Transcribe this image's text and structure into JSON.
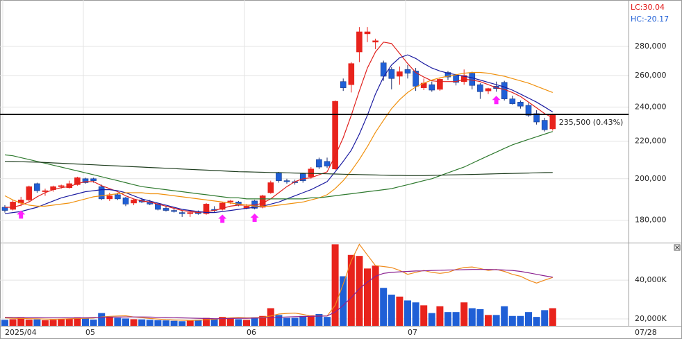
{
  "chart_data": {
    "type": "candlestick",
    "log_scale": true,
    "grid": true,
    "up_color": "#e8231c",
    "down_color": "#1f5fd6",
    "lc_label": "LC:30.04",
    "hc_label": "HC:-20.17",
    "cursor_date": "07/28",
    "current_price": 235500,
    "current_label": "235,500 (0.43%)",
    "signal_color": "#ff20ff",
    "signals": [
      2,
      27,
      31,
      61
    ],
    "categories": [
      "2025/04",
      null,
      null,
      null,
      null,
      null,
      null,
      null,
      null,
      null,
      "05",
      null,
      null,
      null,
      null,
      null,
      null,
      null,
      null,
      null,
      null,
      null,
      null,
      null,
      null,
      null,
      null,
      null,
      null,
      null,
      "06",
      null,
      null,
      null,
      null,
      null,
      null,
      null,
      null,
      null,
      null,
      null,
      null,
      null,
      null,
      null,
      null,
      null,
      null,
      null,
      "07",
      null,
      null,
      null,
      null,
      null,
      null,
      null,
      null,
      null,
      null,
      null,
      null,
      null,
      null,
      null,
      null,
      null,
      null
    ],
    "open": [
      186000,
      185000,
      188000,
      189500,
      197500,
      193500,
      194500,
      196000,
      195500,
      197000,
      200000,
      200000,
      196000,
      190000,
      192000,
      190500,
      188000,
      189500,
      188500,
      187500,
      185500,
      184500,
      183500,
      183000,
      183500,
      183000,
      185000,
      185000,
      188500,
      188500,
      185500,
      189000,
      186000,
      193000,
      203000,
      199000,
      198500,
      202500,
      201000,
      210000,
      209000,
      205000,
      256000,
      254000,
      276000,
      289000,
      283000,
      268500,
      264000,
      259500,
      264000,
      263000,
      252000,
      254000,
      251000,
      262000,
      260000,
      256000,
      261500,
      254000,
      250000,
      253000,
      255500,
      245000,
      243000,
      241000,
      236000,
      232000,
      227000
    ],
    "high": [
      187000,
      189500,
      191000,
      196500,
      198000,
      195000,
      196500,
      197000,
      199000,
      201000,
      200500,
      200500,
      197000,
      193000,
      193000,
      191000,
      190000,
      190500,
      189500,
      188000,
      186500,
      185500,
      184500,
      184000,
      184500,
      188000,
      186500,
      188500,
      189500,
      189000,
      187500,
      189500,
      192000,
      199000,
      203500,
      200000,
      199500,
      203000,
      206000,
      211000,
      211000,
      244000,
      258000,
      269000,
      294000,
      294000,
      285500,
      270000,
      265500,
      266000,
      267000,
      265000,
      258000,
      256000,
      258500,
      263000,
      261000,
      264000,
      262500,
      255000,
      252000,
      256000,
      256500,
      247000,
      244000,
      242500,
      238000,
      233500,
      236000
    ],
    "low": [
      183500,
      184500,
      186500,
      188500,
      193000,
      191500,
      193500,
      195000,
      195000,
      196500,
      197500,
      198000,
      189500,
      189000,
      189500,
      186500,
      187000,
      188000,
      187000,
      184500,
      184000,
      183500,
      181500,
      181500,
      182500,
      182500,
      183500,
      184500,
      187500,
      186500,
      185000,
      185000,
      185500,
      192500,
      198000,
      197500,
      197000,
      198000,
      200000,
      205000,
      205500,
      204500,
      250000,
      249000,
      269000,
      283000,
      278000,
      256500,
      251000,
      254000,
      258000,
      250000,
      250500,
      249500,
      250000,
      257000,
      253500,
      254000,
      251000,
      245000,
      248000,
      249500,
      244000,
      241500,
      239000,
      234000,
      229500,
      225500,
      226000
    ],
    "close": [
      184500,
      188500,
      189500,
      196000,
      194000,
      194000,
      196000,
      196500,
      197500,
      200500,
      198000,
      199000,
      190000,
      191500,
      190000,
      187500,
      189500,
      188500,
      187500,
      185000,
      184500,
      184000,
      183000,
      183500,
      183000,
      187500,
      184500,
      188000,
      189000,
      187000,
      186500,
      185500,
      191500,
      198000,
      199000,
      198500,
      198000,
      199000,
      205000,
      206000,
      206500,
      243500,
      252000,
      268000,
      290500,
      290500,
      284000,
      259500,
      258000,
      262500,
      261500,
      253000,
      255000,
      250500,
      257500,
      259000,
      255500,
      260000,
      253500,
      249500,
      251500,
      251500,
      245000,
      242000,
      240500,
      235000,
      231000,
      226500,
      235500
    ],
    "ylim": [
      170000,
      315000
    ],
    "yticks": [
      {
        "value": 180000,
        "label": "180,000"
      },
      {
        "value": 200000,
        "label": "200,000"
      },
      {
        "value": 220000,
        "label": "220,000"
      },
      {
        "value": 240000,
        "label": "240,000"
      },
      {
        "value": 260000,
        "label": "260,000"
      },
      {
        "value": 280000,
        "label": "280,000"
      }
    ],
    "series": [
      {
        "name": "MA5",
        "color": "#e0201c",
        "values": [
          186000,
          186000,
          187000,
          188500,
          191000,
          193000,
          194500,
          195500,
          196000,
          197500,
          198500,
          198500,
          196500,
          195000,
          193500,
          191500,
          190000,
          189000,
          188500,
          187500,
          186500,
          185500,
          184500,
          184000,
          183500,
          184000,
          184500,
          185500,
          186500,
          187000,
          187000,
          187000,
          188000,
          190000,
          193000,
          196000,
          198500,
          200000,
          200500,
          202000,
          203500,
          212000,
          222000,
          235000,
          250000,
          265000,
          276000,
          283000,
          282000,
          275000,
          268000,
          262000,
          259000,
          256500,
          256000,
          256000,
          256000,
          257500,
          257000,
          256000,
          254000,
          252000,
          251000,
          249000,
          246500,
          243000,
          239500,
          236000,
          233500
        ]
      },
      {
        "name": "MA10",
        "color": "#1a1aa0",
        "values": [
          183000,
          183500,
          184000,
          185000,
          186000,
          187500,
          189000,
          190500,
          191500,
          192500,
          193500,
          194000,
          194500,
          194500,
          194000,
          193000,
          191500,
          190000,
          189000,
          188000,
          187000,
          186000,
          185000,
          184500,
          184000,
          183500,
          183500,
          184000,
          184500,
          185000,
          185500,
          186000,
          186500,
          187500,
          188500,
          190000,
          191500,
          193000,
          194500,
          196500,
          198500,
          203500,
          209000,
          215000,
          224000,
          235000,
          248000,
          259000,
          267000,
          272000,
          274000,
          271500,
          268000,
          265000,
          263000,
          261500,
          260500,
          259500,
          258500,
          257000,
          255500,
          254000,
          252500,
          250500,
          248000,
          245500,
          243000,
          240000,
          237000
        ]
      },
      {
        "name": "MA20",
        "color": "#f0900c",
        "values": [
          191500,
          189500,
          188000,
          187000,
          186500,
          186500,
          187000,
          187500,
          188000,
          189000,
          190000,
          191000,
          191500,
          192000,
          192500,
          193000,
          193000,
          193000,
          192500,
          192500,
          192000,
          191500,
          191000,
          190500,
          190000,
          189500,
          189000,
          188500,
          188000,
          187500,
          187000,
          186500,
          186500,
          186500,
          187000,
          187500,
          188000,
          188500,
          189500,
          190500,
          192000,
          195000,
          199000,
          204000,
          210000,
          217000,
          225000,
          232000,
          239000,
          244500,
          249000,
          252500,
          255000,
          257000,
          258500,
          259500,
          260500,
          261500,
          262000,
          262000,
          261500,
          260500,
          259500,
          258000,
          256500,
          255000,
          253000,
          251000,
          249000
        ]
      },
      {
        "name": "MA60",
        "color": "#2f7a2f",
        "values": [
          212500,
          212000,
          211000,
          210000,
          209000,
          208000,
          207000,
          206000,
          205000,
          204000,
          203000,
          202000,
          201000,
          200000,
          199000,
          198000,
          197000,
          196000,
          195500,
          195000,
          194500,
          194000,
          193500,
          193000,
          192500,
          192000,
          191500,
          191000,
          190500,
          190500,
          190000,
          190000,
          190000,
          190000,
          190000,
          190000,
          190000,
          190000,
          190500,
          190500,
          191000,
          191500,
          192000,
          192500,
          193000,
          193500,
          194000,
          194500,
          195000,
          196000,
          197000,
          198000,
          199000,
          200000,
          201500,
          203000,
          204500,
          206000,
          208000,
          210000,
          212000,
          214000,
          216000,
          218000,
          219500,
          221000,
          222500,
          224000,
          225500
        ]
      },
      {
        "name": "MA120",
        "color": "#1e3d1e",
        "values": [
          209000,
          208900,
          208800,
          208700,
          208600,
          208400,
          208200,
          208000,
          207800,
          207600,
          207400,
          207200,
          207000,
          206800,
          206600,
          206400,
          206200,
          206000,
          205800,
          205600,
          205400,
          205200,
          205000,
          204800,
          204600,
          204400,
          204200,
          204000,
          203800,
          203600,
          203500,
          203400,
          203300,
          203200,
          203100,
          203000,
          202900,
          202800,
          202700,
          202600,
          202500,
          202400,
          202300,
          202200,
          202100,
          202000,
          201900,
          201800,
          201700,
          201700,
          201600,
          201600,
          201600,
          201700,
          201800,
          201900,
          202000,
          202100,
          202200,
          202300,
          202400,
          202500,
          202600,
          202700,
          202800,
          202900,
          203000,
          203100,
          203200
        ]
      }
    ],
    "volume": {
      "ylim": [
        16400,
        59000
      ],
      "yticks": [
        {
          "value": 20000,
          "label": "20,000K"
        },
        {
          "value": 40000,
          "label": "40,000K"
        }
      ],
      "values": [
        19500,
        19800,
        20500,
        19600,
        19700,
        19300,
        19500,
        19800,
        20000,
        20800,
        20200,
        19600,
        23000,
        21000,
        20500,
        20200,
        19800,
        19700,
        19500,
        19300,
        19200,
        19000,
        18800,
        19100,
        19500,
        20500,
        20000,
        21000,
        20500,
        19800,
        19500,
        20800,
        21500,
        25500,
        22000,
        20500,
        20500,
        21500,
        21800,
        22500,
        21000,
        58500,
        42000,
        53000,
        52500,
        46000,
        47500,
        36000,
        32500,
        31500,
        29500,
        28500,
        27000,
        23000,
        26500,
        23500,
        23500,
        28500,
        25500,
        25000,
        22000,
        22000,
        26500,
        21500,
        21500,
        23500,
        21000,
        24500,
        25500
      ],
      "series": [
        {
          "name": "VMA5",
          "color": "#f08a1c",
          "values": [
            20500,
            20300,
            20200,
            20100,
            20000,
            19900,
            19800,
            19900,
            20000,
            20200,
            20300,
            20400,
            21000,
            21300,
            21500,
            21600,
            21000,
            20600,
            20200,
            19900,
            19600,
            19400,
            19300,
            19200,
            19300,
            19500,
            19800,
            20200,
            20500,
            20700,
            20500,
            20600,
            20800,
            21500,
            22500,
            22800,
            23000,
            22300,
            21400,
            21500,
            21500,
            27000,
            38000,
            50000,
            58500,
            53000,
            47500,
            47000,
            46500,
            45000,
            43000,
            44000,
            45000,
            44000,
            43500,
            44000,
            45500,
            46500,
            46800,
            46000,
            45000,
            45500,
            44500,
            43000,
            42000,
            40000,
            38500,
            40000,
            41400
          ]
        },
        {
          "name": "VMA20",
          "color": "#8a2090",
          "values": [
            20800,
            20800,
            20700,
            20700,
            20700,
            20600,
            20600,
            20600,
            20500,
            20500,
            20600,
            20700,
            20800,
            20900,
            20900,
            21000,
            21000,
            21000,
            20900,
            20800,
            20700,
            20600,
            20500,
            20400,
            20300,
            20200,
            20100,
            20100,
            20200,
            20300,
            20300,
            20400,
            20500,
            20600,
            20800,
            21000,
            21100,
            21200,
            21300,
            21400,
            21500,
            23500,
            27000,
            31000,
            35500,
            39000,
            42000,
            43500,
            44000,
            44300,
            44500,
            44700,
            44800,
            45000,
            45100,
            45200,
            45300,
            45400,
            45500,
            45500,
            45500,
            45400,
            45200,
            45000,
            44500,
            43800,
            43000,
            42200,
            41500
          ]
        }
      ]
    }
  }
}
